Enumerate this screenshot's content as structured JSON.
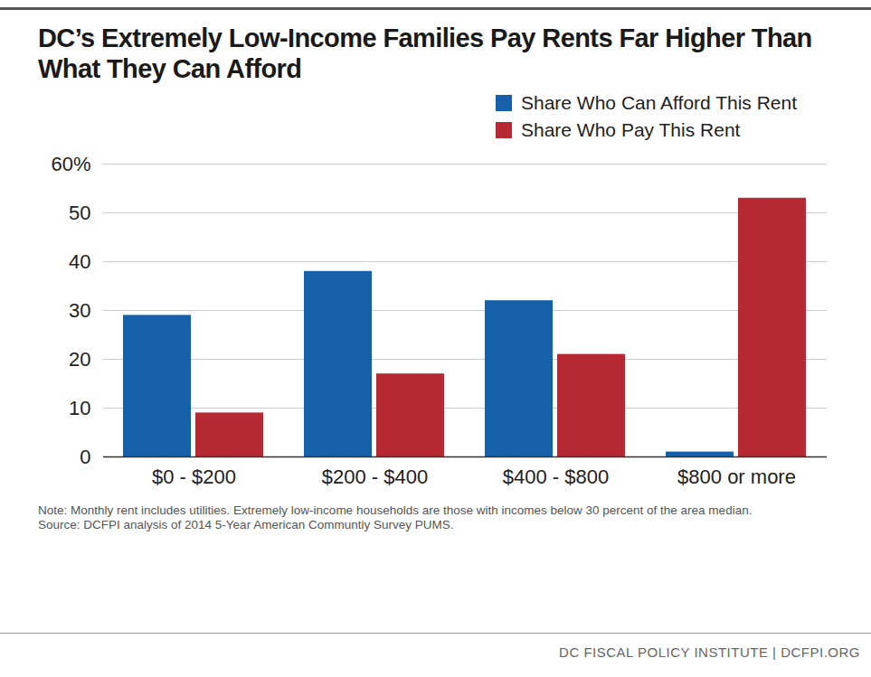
{
  "chart_data": {
    "type": "bar",
    "title": "DC’s Extremely Low-Income Families Pay Rents Far Higher Than What They Can Afford",
    "categories": [
      "$0 - $200",
      "$200 - $400",
      "$400 - $800",
      "$800 or more"
    ],
    "series": [
      {
        "name": "Share Who Can Afford This Rent",
        "color": "#1560a8",
        "values": [
          29,
          38,
          32,
          1
        ]
      },
      {
        "name": "Share Who Pay This Rent",
        "color": "#b82a33",
        "values": [
          9,
          17,
          21,
          53
        ]
      }
    ],
    "ylim": [
      0,
      60
    ],
    "yticks": [
      0,
      10,
      20,
      30,
      40,
      50,
      {
        "value": 60,
        "label": "60%"
      }
    ],
    "grid": true,
    "legend": "top-right",
    "notes": [
      "Note: Monthly rent includes utilities. Extremely low-income households are those with incomes below 30 percent of the area median.",
      "Source: DCFPI analysis of 2014 5-Year American Communtiy Survey PUMS."
    ],
    "footer": "DC FISCAL POLICY INSTITUTE | DCFPI.ORG"
  }
}
